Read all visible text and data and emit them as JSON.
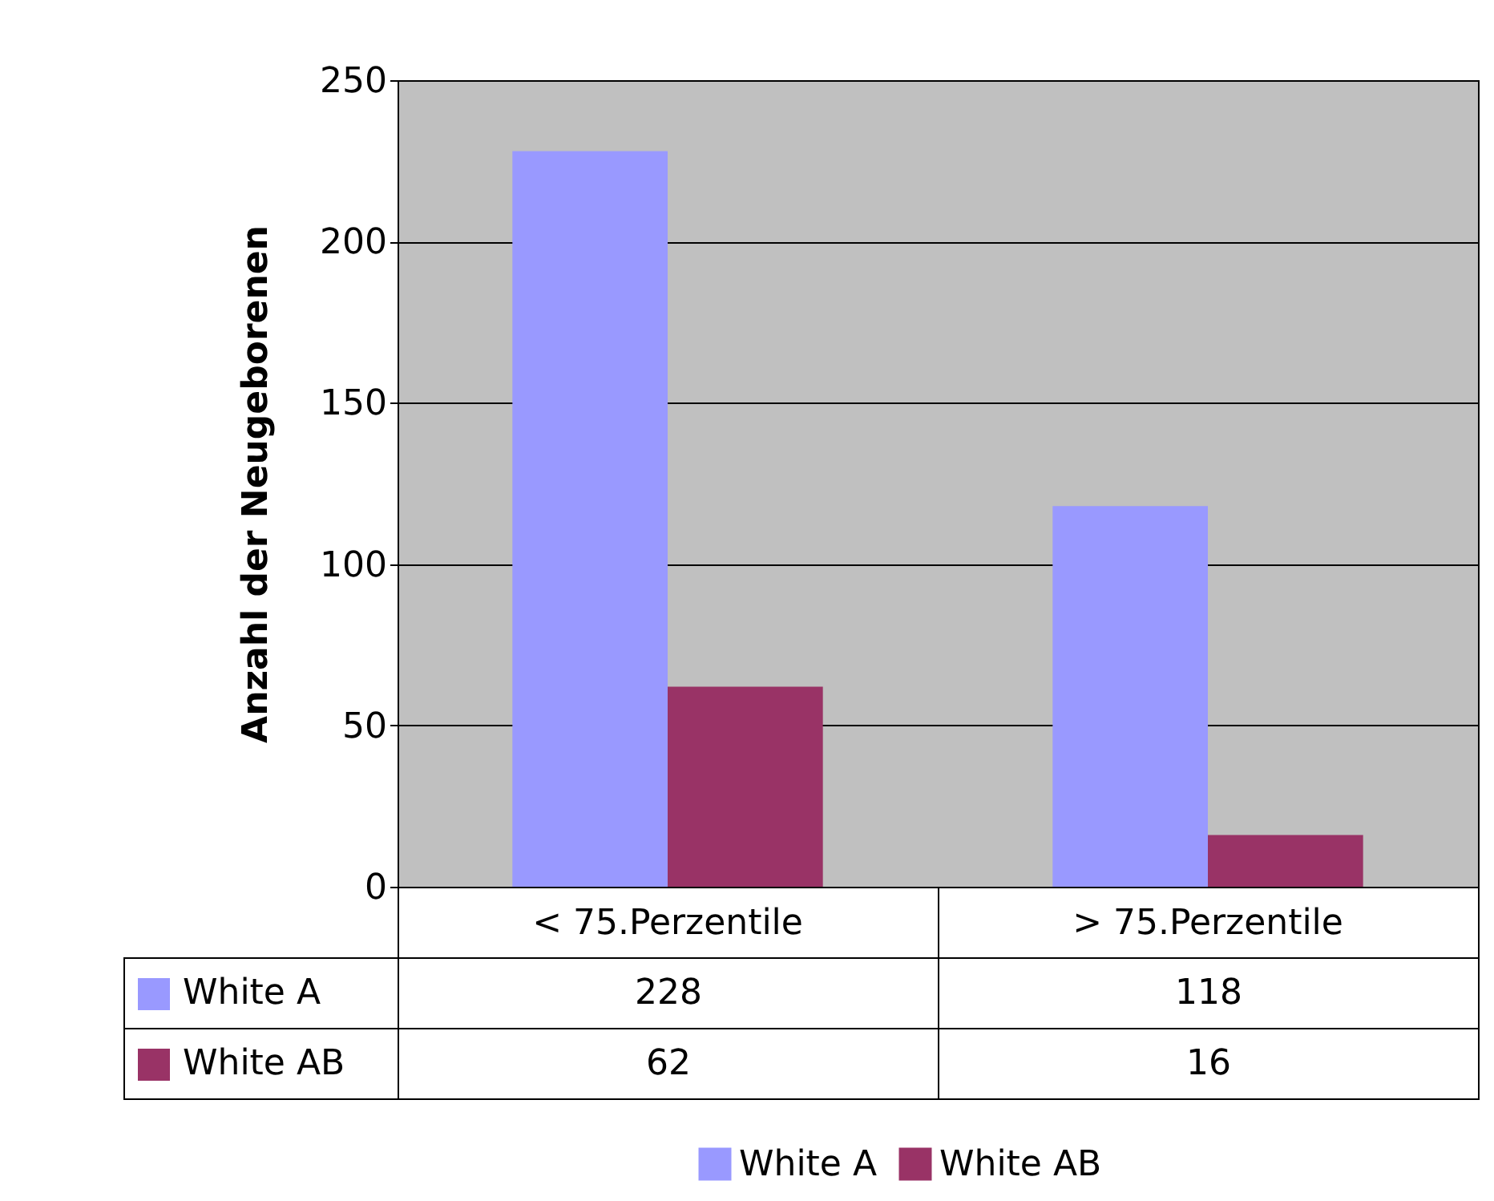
{
  "chart_data": {
    "type": "bar",
    "ylabel": "Anzahl der Neugeborenen",
    "categories": [
      "< 75.Perzentile",
      "> 75.Perzentile"
    ],
    "series": [
      {
        "name": "White A",
        "color": "#9999ff",
        "values": [
          228,
          118
        ]
      },
      {
        "name": "White AB",
        "color": "#993366",
        "values": [
          62,
          16
        ]
      }
    ],
    "ylim": [
      0,
      250
    ],
    "yticks": [
      0,
      50,
      100,
      150,
      200,
      250
    ],
    "grid": "y",
    "legend": "bottom",
    "data_labels": true
  }
}
